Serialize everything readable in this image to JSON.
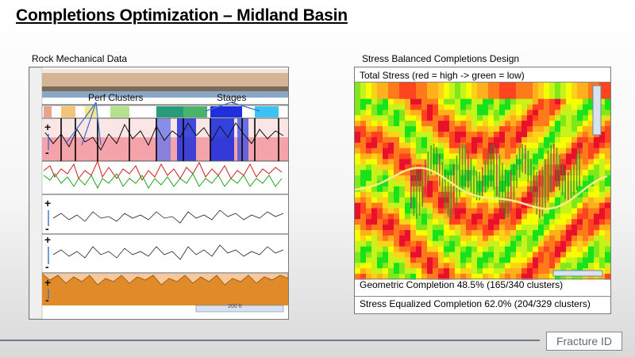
{
  "slide": {
    "title": "Completions Optimization – Midland Basin"
  },
  "left": {
    "caption": "Rock Mechanical Data",
    "labels": {
      "perf_clusters": "Perf Clusters",
      "stages": "Stages"
    },
    "scale_text": "200 ft"
  },
  "right": {
    "caption": "Stress Balanced Completions Design",
    "total_stress": "Total Stress (red = high -> green = low)",
    "geometric": "Geometric Completion 48.5% (165/340 clusters)",
    "stress_equalized": "Stress Equalized Completion 62.0% (204/329 clusters)"
  },
  "logo": {
    "text": "Fracture ID"
  },
  "colors": {
    "high": "#e8102a",
    "mid": "#f6ff00",
    "low": "#18e21c",
    "sand": "#d5b595",
    "stage_blue": "#1f2fdc"
  }
}
